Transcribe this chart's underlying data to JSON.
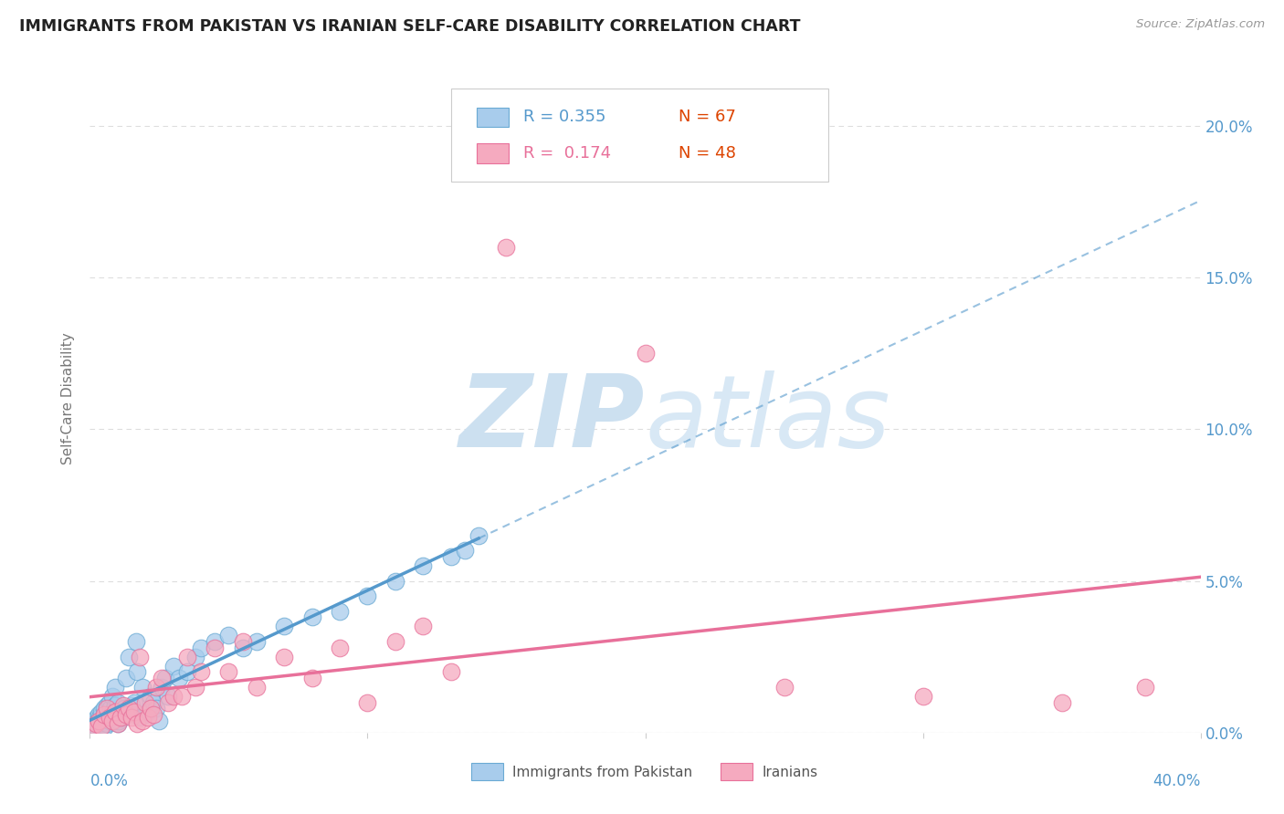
{
  "title": "IMMIGRANTS FROM PAKISTAN VS IRANIAN SELF-CARE DISABILITY CORRELATION CHART",
  "source": "Source: ZipAtlas.com",
  "ylabel": "Self-Care Disability",
  "ytick_labels": [
    "0.0%",
    "5.0%",
    "10.0%",
    "15.0%",
    "20.0%"
  ],
  "ytick_values": [
    0.0,
    5.0,
    10.0,
    15.0,
    20.0
  ],
  "xlim": [
    0.0,
    40.0
  ],
  "ylim": [
    0.0,
    22.0
  ],
  "legend_r1": "0.355",
  "legend_n1": "67",
  "legend_r2": "0.174",
  "legend_n2": "48",
  "legend_label1": "Immigrants from Pakistan",
  "legend_label2": "Iranians",
  "pakistan_color": "#a8ccec",
  "iranian_color": "#f5aabf",
  "pakistan_edge_color": "#6aaad4",
  "iranian_edge_color": "#e8709a",
  "pakistan_line_color": "#5599cc",
  "iranian_line_color": "#e8709a",
  "background_color": "#ffffff",
  "grid_color": "#dddddd",
  "watermark_zip_color": "#cce0f0",
  "watermark_atlas_color": "#d8e8f5",
  "right_tick_color": "#5599cc",
  "source_color": "#999999",
  "title_color": "#222222",
  "axis_label_color": "#777777",
  "xleft_label": "0.0%",
  "xright_label": "40.0%",
  "pakistan_scatter_x": [
    0.1,
    0.15,
    0.2,
    0.25,
    0.3,
    0.3,
    0.35,
    0.4,
    0.4,
    0.45,
    0.5,
    0.5,
    0.55,
    0.6,
    0.6,
    0.65,
    0.7,
    0.7,
    0.75,
    0.8,
    0.8,
    0.85,
    0.9,
    0.9,
    0.95,
    1.0,
    1.0,
    1.05,
    1.05,
    1.1,
    1.2,
    1.25,
    1.3,
    1.4,
    1.5,
    1.6,
    1.65,
    1.7,
    1.8,
    1.9,
    2.0,
    2.1,
    2.2,
    2.3,
    2.4,
    2.5,
    2.6,
    2.7,
    2.8,
    3.0,
    3.2,
    3.5,
    3.8,
    4.0,
    4.5,
    5.0,
    5.5,
    6.0,
    7.0,
    8.0,
    9.0,
    10.0,
    11.0,
    12.0,
    13.0,
    13.5,
    14.0
  ],
  "pakistan_scatter_y": [
    0.1,
    0.3,
    0.2,
    0.5,
    0.4,
    0.6,
    0.5,
    0.7,
    0.4,
    0.3,
    0.6,
    0.8,
    0.2,
    0.3,
    0.9,
    0.5,
    0.4,
    1.0,
    0.8,
    0.7,
    1.2,
    0.4,
    0.9,
    1.5,
    0.6,
    0.3,
    1.0,
    0.4,
    0.7,
    0.5,
    0.5,
    0.8,
    1.8,
    2.5,
    0.9,
    1.0,
    3.0,
    2.0,
    0.5,
    1.5,
    0.6,
    0.7,
    1.2,
    1.0,
    0.8,
    0.4,
    1.5,
    1.8,
    1.2,
    2.2,
    1.8,
    2.0,
    2.5,
    2.8,
    3.0,
    3.2,
    2.8,
    3.0,
    3.5,
    3.8,
    4.0,
    4.5,
    5.0,
    5.5,
    5.8,
    6.0,
    6.5
  ],
  "iranian_scatter_x": [
    0.1,
    0.2,
    0.3,
    0.4,
    0.5,
    0.6,
    0.7,
    0.8,
    0.9,
    1.0,
    1.1,
    1.2,
    1.3,
    1.4,
    1.5,
    1.6,
    1.7,
    1.8,
    1.9,
    2.0,
    2.1,
    2.2,
    2.3,
    2.4,
    2.6,
    2.8,
    3.0,
    3.3,
    3.5,
    3.8,
    4.0,
    4.5,
    5.0,
    5.5,
    6.0,
    7.0,
    8.0,
    9.0,
    10.0,
    11.0,
    12.0,
    13.0,
    15.0,
    20.0,
    25.0,
    30.0,
    35.0,
    38.0
  ],
  "iranian_scatter_y": [
    0.2,
    0.3,
    0.4,
    0.2,
    0.6,
    0.8,
    0.5,
    0.4,
    0.7,
    0.3,
    0.5,
    0.9,
    0.6,
    0.8,
    0.5,
    0.7,
    0.3,
    2.5,
    0.4,
    1.0,
    0.5,
    0.8,
    0.6,
    1.5,
    1.8,
    1.0,
    1.2,
    1.2,
    2.5,
    1.5,
    2.0,
    2.8,
    2.0,
    3.0,
    1.5,
    2.5,
    1.8,
    2.8,
    1.0,
    3.0,
    3.5,
    2.0,
    16.0,
    12.5,
    1.5,
    1.2,
    1.0,
    1.5
  ]
}
